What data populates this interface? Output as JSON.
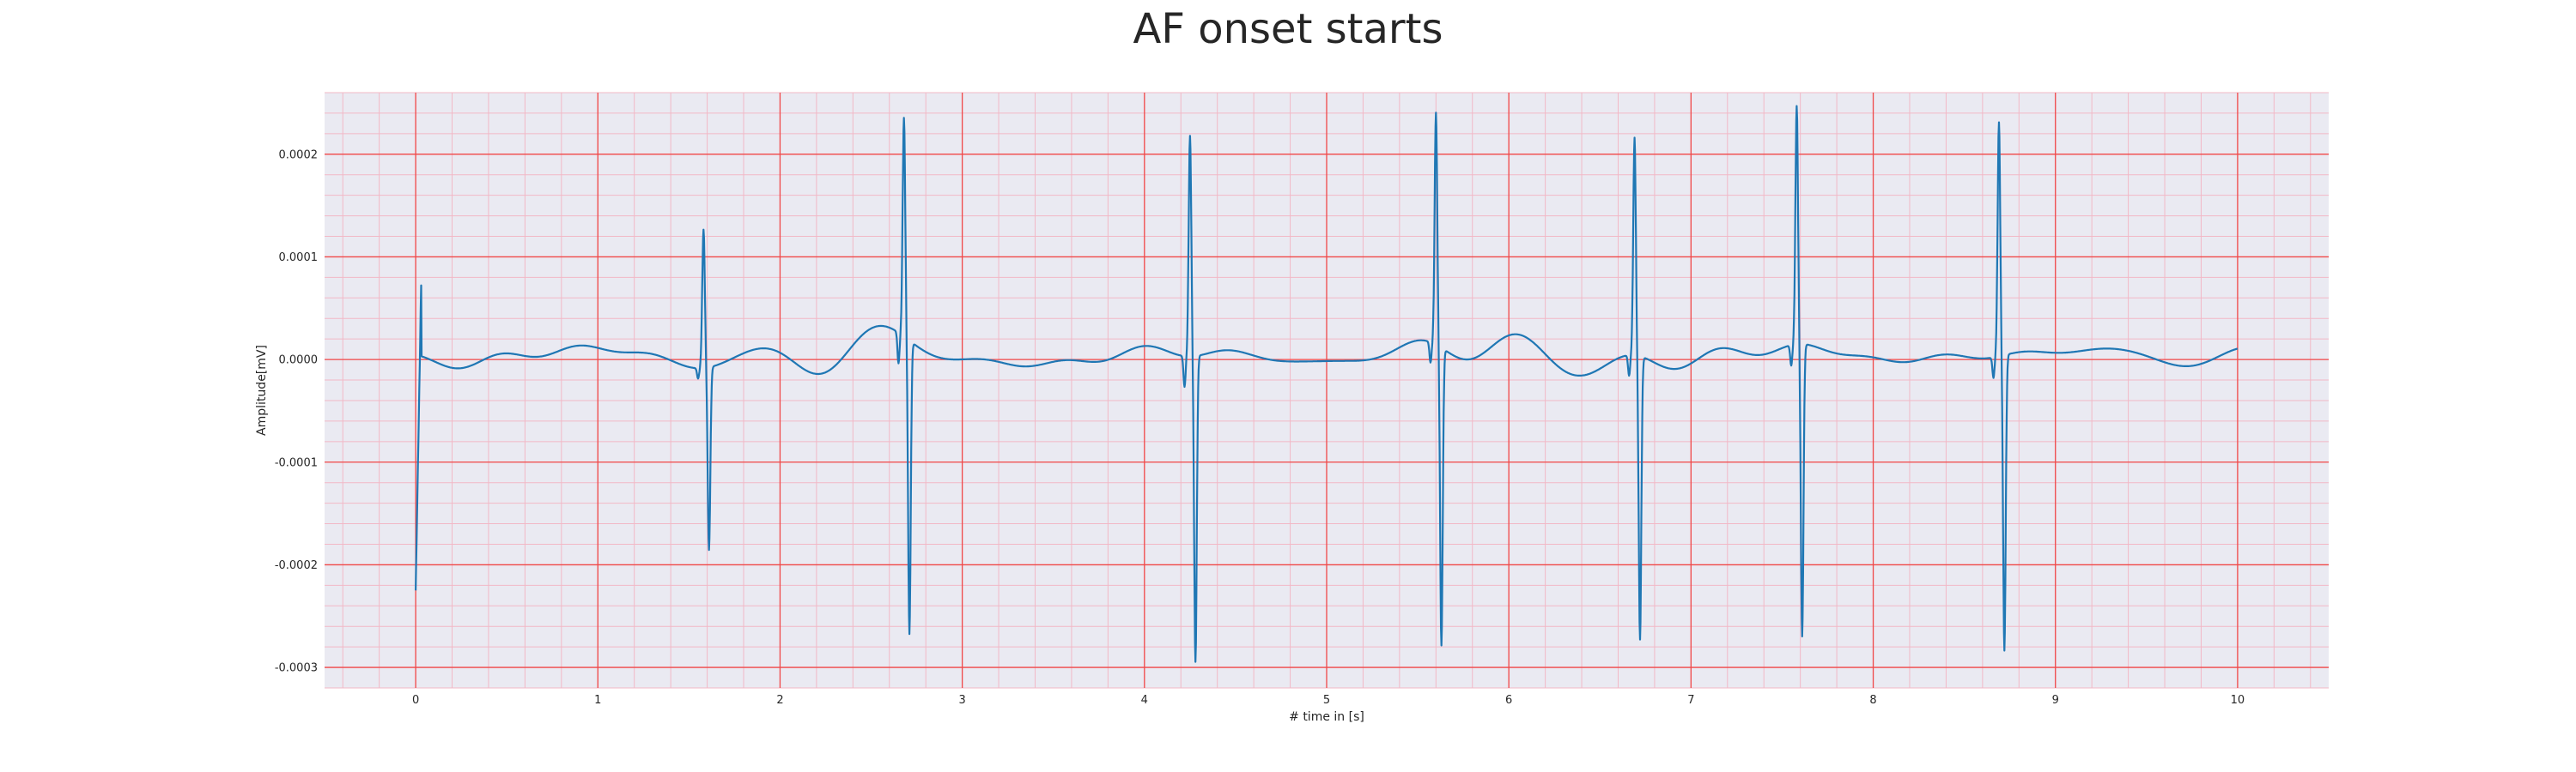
{
  "chart_data": {
    "type": "line",
    "title": "AF onset starts",
    "xlabel": "# time in [s]",
    "ylabel": "Amplitude[mV]",
    "xlim": [
      -0.5,
      10.5
    ],
    "ylim": [
      -0.00032,
      0.00026
    ],
    "x_ticks": [
      "0",
      "1",
      "2",
      "3",
      "4",
      "5",
      "6",
      "7",
      "8",
      "9",
      "10"
    ],
    "y_ticks": [
      "0.0002",
      "0.0001",
      "0.0000",
      "-0.0001",
      "-0.0002",
      "-0.0003"
    ],
    "grid": true,
    "minor_grid": true,
    "colors": {
      "line": "#1f77b4",
      "major_grid": "#f04848",
      "minor_grid": "#f2b8c6",
      "background": "#eaeaf2"
    },
    "series": [
      {
        "beats": [
          {
            "t": 0.0,
            "r": 2e-05,
            "s": -0.000225,
            "q": 0
          },
          {
            "t": 1.58,
            "r": 0.000135,
            "s": -0.000178,
            "q": -1e-05
          },
          {
            "t": 2.68,
            "r": 0.000213,
            "s": -0.000286,
            "q": -3e-05
          },
          {
            "t": 4.25,
            "r": 0.000215,
            "s": -0.000298,
            "q": -3e-05
          },
          {
            "t": 5.6,
            "r": 0.000226,
            "s": -0.00029,
            "q": -2e-05
          },
          {
            "t": 6.69,
            "r": 0.000212,
            "s": -0.000276,
            "q": -2e-05
          },
          {
            "t": 7.58,
            "r": 0.000232,
            "s": -0.000285,
            "q": -2e-05
          },
          {
            "t": 8.69,
            "r": 0.000228,
            "s": -0.000288,
            "q": -2e-05
          }
        ],
        "x_end": 10.0,
        "baseline_noise_amplitude": 1.5e-05
      }
    ]
  }
}
